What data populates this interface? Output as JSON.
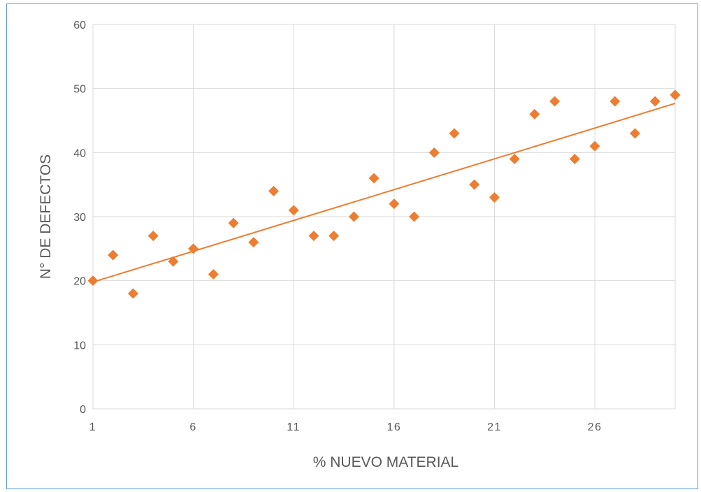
{
  "chart_data": {
    "type": "scatter",
    "title": "",
    "xlabel": "% NUEVO MATERIAL",
    "ylabel": "N° DE DEFECTOS",
    "xlim": [
      1,
      30
    ],
    "ylim": [
      0,
      60
    ],
    "x_ticks": [
      1,
      6,
      11,
      16,
      21,
      26
    ],
    "y_ticks": [
      0,
      10,
      20,
      30,
      40,
      50,
      60
    ],
    "grid": true,
    "legend": "none",
    "marker": "diamond",
    "marker_color": "#ed7d31",
    "trendline": {
      "type": "linear",
      "color": "#ed7d31"
    },
    "points": [
      {
        "x": 1,
        "y": 20
      },
      {
        "x": 2,
        "y": 24
      },
      {
        "x": 3,
        "y": 18
      },
      {
        "x": 4,
        "y": 27
      },
      {
        "x": 5,
        "y": 23
      },
      {
        "x": 6,
        "y": 25
      },
      {
        "x": 7,
        "y": 21
      },
      {
        "x": 8,
        "y": 29
      },
      {
        "x": 9,
        "y": 26
      },
      {
        "x": 10,
        "y": 34
      },
      {
        "x": 11,
        "y": 31
      },
      {
        "x": 12,
        "y": 27
      },
      {
        "x": 13,
        "y": 27
      },
      {
        "x": 14,
        "y": 30
      },
      {
        "x": 15,
        "y": 36
      },
      {
        "x": 16,
        "y": 32
      },
      {
        "x": 17,
        "y": 30
      },
      {
        "x": 18,
        "y": 40
      },
      {
        "x": 19,
        "y": 43
      },
      {
        "x": 20,
        "y": 35
      },
      {
        "x": 21,
        "y": 33
      },
      {
        "x": 22,
        "y": 39
      },
      {
        "x": 23,
        "y": 46
      },
      {
        "x": 24,
        "y": 48
      },
      {
        "x": 25,
        "y": 39
      },
      {
        "x": 26,
        "y": 41
      },
      {
        "x": 27,
        "y": 48
      },
      {
        "x": 28,
        "y": 43
      },
      {
        "x": 29,
        "y": 48
      },
      {
        "x": 30,
        "y": 49
      }
    ]
  }
}
